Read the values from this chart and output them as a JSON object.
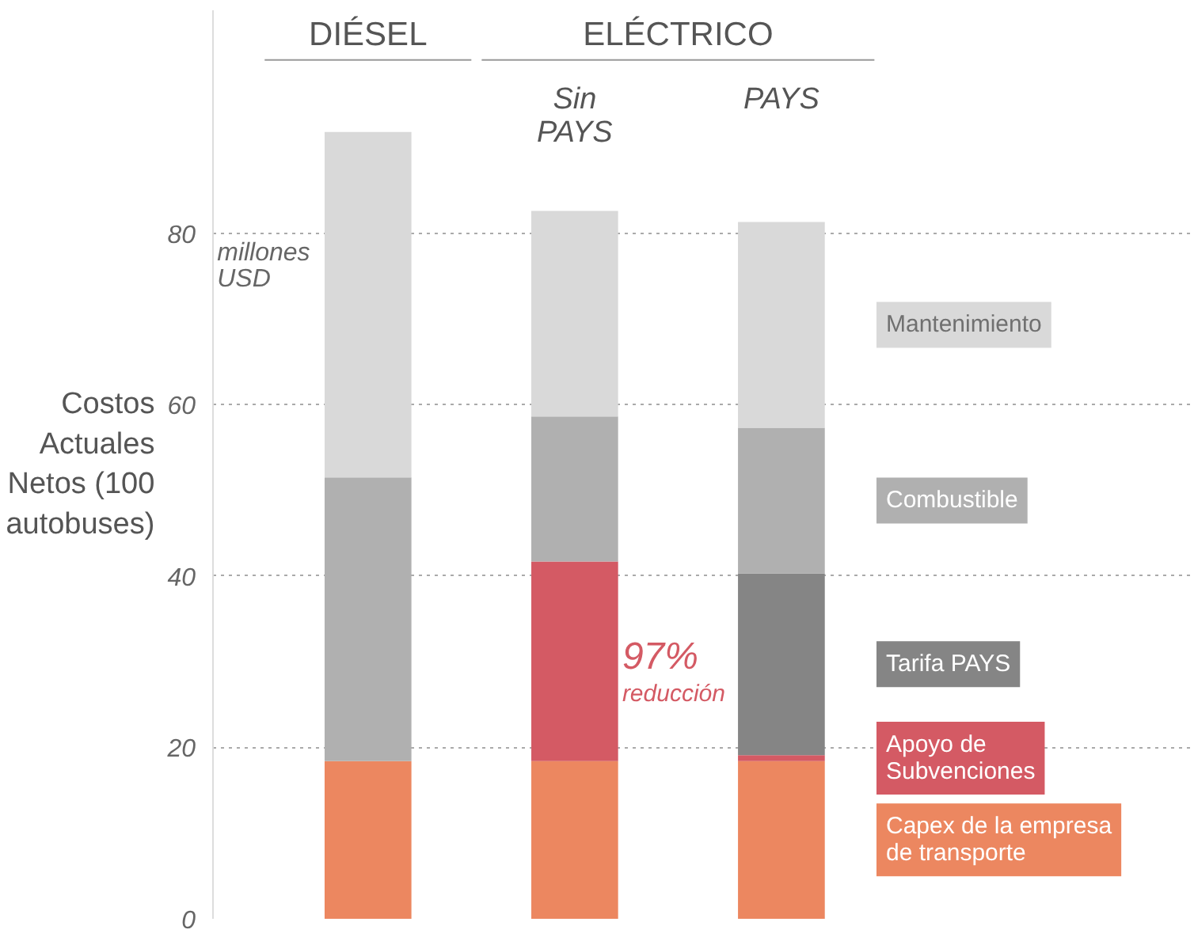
{
  "chart_data": {
    "type": "bar",
    "stacked": true,
    "categories": [
      "DIÉSEL",
      "Sin PAYS",
      "PAYS"
    ],
    "ylabel": "Costos Actuales Netos (100 autobuses)",
    "annotations": [
      "ELÉCTRICO",
      "millones USD",
      "97% reducción"
    ],
    "series": [
      {
        "name": "Capex de la empresa de transporte",
        "color": "#ec8760",
        "values": [
          18.4,
          18.4,
          18.4
        ]
      },
      {
        "name": "Apoyo de Subvenciones",
        "color": "#d45a64",
        "values": [
          0,
          23.3,
          0.7
        ]
      },
      {
        "name": "Tarifa PAYS",
        "color": "#858585",
        "values": [
          0,
          0,
          21.2
        ]
      },
      {
        "name": "Combustible",
        "color": "#b0b0b0",
        "values": [
          33.1,
          16.9,
          17.0
        ]
      },
      {
        "name": "Mantenimiento",
        "color": "#d9d9d9",
        "values": [
          40.3,
          24.0,
          24.0
        ]
      }
    ],
    "ylim": [
      0,
      106
    ],
    "yticks": [
      0,
      20,
      40,
      60,
      80
    ],
    "grid": "y",
    "legend": "right"
  }
}
